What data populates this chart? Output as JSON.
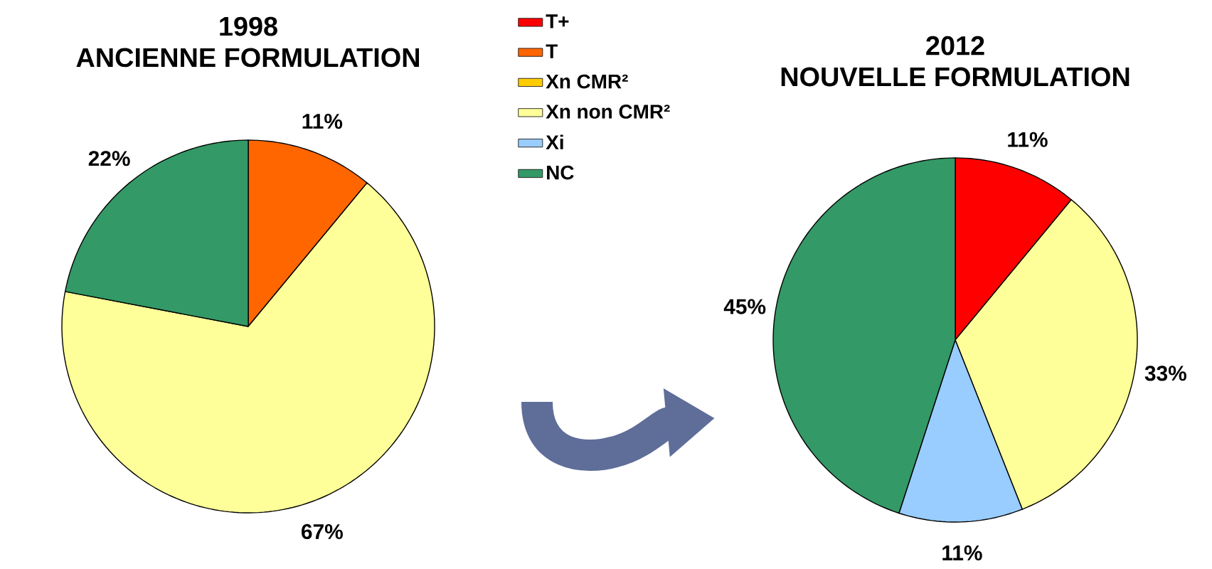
{
  "chart_data": [
    {
      "type": "pie",
      "title": "1998",
      "subtitle": "ANCIENNE FORMULATION",
      "categories": [
        "T+",
        "T",
        "Xn CMR²",
        "Xn non CMR²",
        "Xi",
        "NC"
      ],
      "values": [
        0,
        11,
        0,
        67,
        0,
        22
      ],
      "colors": [
        "#ff0000",
        "#ff6600",
        "#ffcc00",
        "#ffff99",
        "#99ccff",
        "#339966"
      ],
      "value_labels": [
        null,
        "11%",
        null,
        "67%",
        null,
        "22%"
      ],
      "legend": "right"
    },
    {
      "type": "pie",
      "title": "2012",
      "subtitle": "NOUVELLE FORMULATION",
      "categories": [
        null,
        null,
        null,
        null,
        null,
        null
      ],
      "values": [
        11,
        0,
        0,
        33,
        11,
        45
      ],
      "colors": [
        "#ff0000",
        "#ff6600",
        "#ffcc00",
        "#ffff99",
        "#99ccff",
        "#339966"
      ],
      "value_labels": [
        "11%",
        null,
        null,
        "33%",
        "11%",
        "45%"
      ]
    }
  ]
}
